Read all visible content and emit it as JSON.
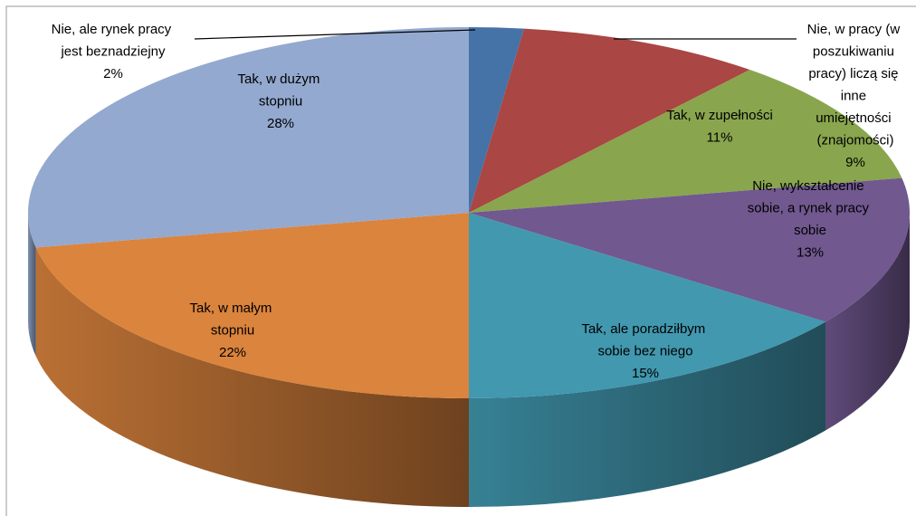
{
  "chart_data": {
    "type": "pie3d",
    "categories": [
      "Nie, ale rynek pracy jest beznadziejny",
      "Nie, w pracy (w poszukiwaniu pracy) liczą się inne umiejętności (znajomości)",
      "Tak, w zupełności",
      "Nie, wykształcenie sobie, a rynek pracy sobie",
      "Tak, ale poradziłbym sobie bez niego",
      "Tak, w małym stopniu",
      "Tak, w dużym stopniu"
    ],
    "values": [
      2,
      9,
      11,
      13,
      15,
      22,
      28
    ],
    "value_labels": [
      "2%",
      "9%",
      "11%",
      "13%",
      "15%",
      "22%",
      "28%"
    ],
    "colors": [
      "#4572a7",
      "#aa4643",
      "#89a54e",
      "#71588f",
      "#4198af",
      "#db843d",
      "#93a9cf"
    ]
  }
}
